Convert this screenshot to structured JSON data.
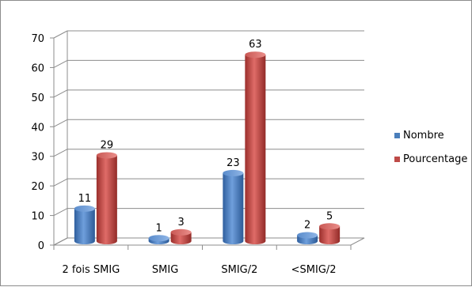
{
  "chart_data": {
    "type": "bar",
    "categories": [
      "2 fois SMIG",
      "SMIG",
      "SMIG/2",
      "<SMIG/2"
    ],
    "series": [
      {
        "name": "Nombre",
        "values": [
          11,
          1,
          23,
          2
        ],
        "color": "#4a7ebb"
      },
      {
        "name": "Pourcentage",
        "values": [
          29,
          3,
          63,
          5
        ],
        "color": "#be4b48"
      }
    ],
    "ylim": [
      0,
      70
    ],
    "yticks": [
      0,
      10,
      20,
      30,
      40,
      50,
      60,
      70
    ],
    "grid": true,
    "legend_position": "right",
    "style": "3d-cylinder"
  }
}
